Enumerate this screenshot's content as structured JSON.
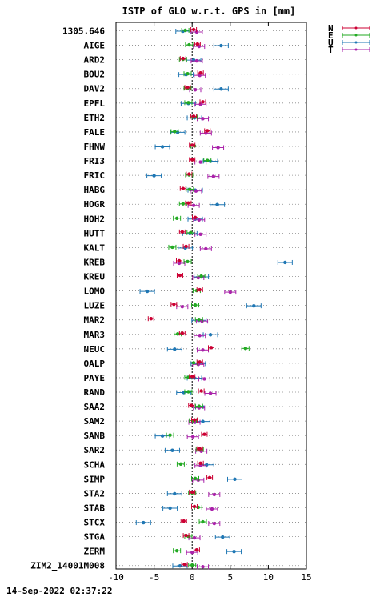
{
  "chart_data": {
    "type": "scatter",
    "title": "ISTP of GLO w.r.t. GPS in [mm]",
    "xlim": [
      -10,
      15
    ],
    "xticks": [
      -10,
      -5,
      0,
      5,
      10,
      15
    ],
    "grid": "dotted horizontal per station",
    "legend_position": "top-right",
    "timestamp": "14-Sep-2022 02:37:22",
    "series": [
      {
        "name": "N",
        "color": "#cc0033"
      },
      {
        "name": "E",
        "color": "#22aa22"
      },
      {
        "name": "U",
        "color": "#1f77b4"
      },
      {
        "name": "T",
        "color": "#aa22aa"
      }
    ],
    "stations": [
      {
        "label": "1305.646",
        "N": 0.2,
        "E": -0.9,
        "U": -1.2,
        "T": 0.6
      },
      {
        "label": "AIGE",
        "N": 0.7,
        "E": -0.4,
        "U": 3.8,
        "T": 0.9
      },
      {
        "label": "ARD2",
        "N": -1.2,
        "E": -1.2,
        "U": 0.2,
        "T": 0.6
      },
      {
        "label": "BOU2",
        "N": 1.1,
        "E": -0.6,
        "U": -0.8,
        "T": 1.0
      },
      {
        "label": "DAV2",
        "N": -0.6,
        "E": -0.6,
        "U": 3.8,
        "T": 0.4
      },
      {
        "label": "EPFL",
        "N": 1.4,
        "E": -0.5,
        "U": -0.5,
        "T": 1.1
      },
      {
        "label": "ETH2",
        "N": 0.2,
        "E": 0.2,
        "U": 0.3,
        "T": 1.4
      },
      {
        "label": "FALE",
        "N": 2.0,
        "E": -2.3,
        "U": -1.9,
        "T": 1.8
      },
      {
        "label": "FHNW",
        "N": 0.0,
        "E": 0.3,
        "U": -3.9,
        "T": 3.4
      },
      {
        "label": "FRI3",
        "N": 0.0,
        "E": 2.0,
        "U": 2.4,
        "T": 1.1
      },
      {
        "label": "FRIC",
        "N": -0.4,
        "E": -0.4,
        "U": -5.0,
        "T": 2.8
      },
      {
        "label": "HABG",
        "N": -1.2,
        "E": -0.3,
        "U": 0.4,
        "T": 0.5
      },
      {
        "label": "HOGR",
        "N": -0.5,
        "E": -1.2,
        "U": 3.3,
        "T": 0.2
      },
      {
        "label": "HOH2",
        "N": 0.4,
        "E": -2.0,
        "U": 0.4,
        "T": 0.9
      },
      {
        "label": "HUTT",
        "N": -1.3,
        "E": -0.2,
        "U": -0.3,
        "T": 1.1
      },
      {
        "label": "KALT",
        "N": -0.8,
        "E": -2.6,
        "U": -0.9,
        "T": 1.8
      },
      {
        "label": "KREB",
        "N": -1.7,
        "E": -0.6,
        "U": 12.2,
        "T": -1.7
      },
      {
        "label": "KREU",
        "N": -1.6,
        "E": 1.2,
        "U": 1.2,
        "T": 0.8
      },
      {
        "label": "LOMO",
        "N": 1.0,
        "E": 0.6,
        "U": -5.9,
        "T": 5.0
      },
      {
        "label": "LUZE",
        "N": -2.4,
        "E": 0.4,
        "U": 8.1,
        "T": -1.3
      },
      {
        "label": "MAR2",
        "N": -5.4,
        "E": 0.9,
        "U": 0.9,
        "T": 1.3
      },
      {
        "label": "MAR3",
        "N": -1.3,
        "E": -1.9,
        "U": 2.4,
        "T": 1.0
      },
      {
        "label": "NEUC",
        "N": 2.5,
        "E": 7.0,
        "U": -2.3,
        "T": 1.4
      },
      {
        "label": "OALP",
        "N": 1.0,
        "E": 0.2,
        "U": 0.8,
        "T": 0.8
      },
      {
        "label": "PAYE",
        "N": 0.0,
        "E": -0.5,
        "U": 0.3,
        "T": 1.6
      },
      {
        "label": "RAND",
        "N": 1.2,
        "E": -0.5,
        "U": -1.1,
        "T": 2.4
      },
      {
        "label": "SAA2",
        "N": -0.1,
        "E": 0.9,
        "U": 1.4,
        "T": 0.9
      },
      {
        "label": "SAM2",
        "N": 0.3,
        "E": 0.1,
        "U": 1.4,
        "T": 0.3
      },
      {
        "label": "SANB",
        "N": 1.6,
        "E": -2.9,
        "U": -3.9,
        "T": 0.1
      },
      {
        "label": "SAR2",
        "N": 1.0,
        "E": 1.0,
        "U": -2.6,
        "T": 1.2
      },
      {
        "label": "SCHA",
        "N": 1.1,
        "E": -1.5,
        "U": 1.9,
        "T": 1.1
      },
      {
        "label": "SIMP",
        "N": 2.3,
        "E": 0.4,
        "U": 5.6,
        "T": 0.8
      },
      {
        "label": "STA2",
        "N": 0.0,
        "E": 0.0,
        "U": -2.3,
        "T": 2.9
      },
      {
        "label": "STAB",
        "N": 0.3,
        "E": 0.8,
        "U": -2.9,
        "T": 2.6
      },
      {
        "label": "STCX",
        "N": -1.1,
        "E": 1.4,
        "U": -6.4,
        "T": 2.9
      },
      {
        "label": "STGA",
        "N": -0.8,
        "E": -0.5,
        "U": 4.0,
        "T": 0.3
      },
      {
        "label": "ZERM",
        "N": 0.6,
        "E": -2.0,
        "U": 5.5,
        "T": 0.0
      },
      {
        "label": "ZIM2_14001M008",
        "N": -1.0,
        "E": 0.0,
        "U": -1.6,
        "T": 1.4
      }
    ]
  }
}
